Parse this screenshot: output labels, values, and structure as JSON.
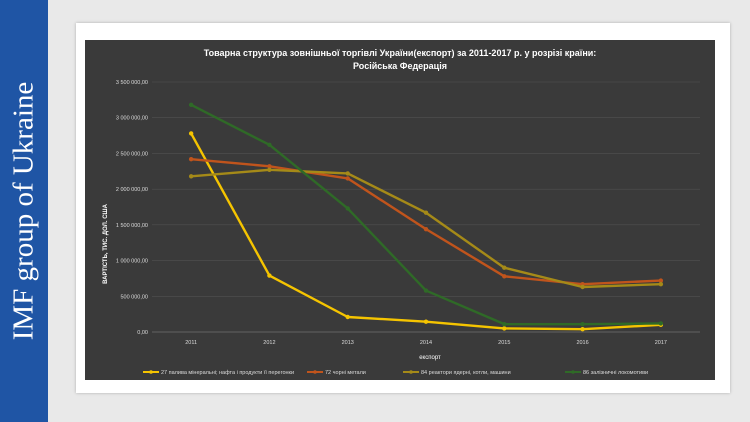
{
  "sidebar": {
    "text": "IMF group of Ukraine"
  },
  "chart_data": {
    "type": "line",
    "title_line1": "Товарна  структура  зовнішньої  торгівлі України(експорт)  за   2011-2017 р.  у розрізі країни:",
    "title_line2": "Російська Федерація",
    "xlabel": "експорт",
    "ylabel": "ВАРТІСТЬ, ТИС. ДОЛ. США",
    "categories": [
      "2011",
      "2012",
      "2013",
      "2014",
      "2015",
      "2016",
      "2017"
    ],
    "yticks": [
      "0,00",
      "500 000,00",
      "1 000 000,00",
      "1 500 000,00",
      "2 000 000,00",
      "2 500 000,00",
      "3 000 000,00",
      "3 500 000,00"
    ],
    "ylim": [
      0,
      3500000
    ],
    "grid": true,
    "legend_position": "bottom",
    "series": [
      {
        "name": "27 палива мінеральні; нафта і продукти її перегонки",
        "color": "#f5c400",
        "values": [
          2780000,
          790000,
          210000,
          145000,
          50000,
          40000,
          100000
        ]
      },
      {
        "name": "72 чорні метали",
        "color": "#c0541c",
        "values": [
          2420000,
          2320000,
          2150000,
          1440000,
          780000,
          670000,
          720000
        ]
      },
      {
        "name": "84 реактори ядерні, котли, машини",
        "color": "#a58a18",
        "values": [
          2180000,
          2270000,
          2220000,
          1670000,
          900000,
          630000,
          670000
        ]
      },
      {
        "name": "86 залізничні  локомотиви",
        "color": "#2f6a27",
        "values": [
          3180000,
          2620000,
          1730000,
          580000,
          110000,
          110000,
          120000
        ]
      }
    ]
  }
}
